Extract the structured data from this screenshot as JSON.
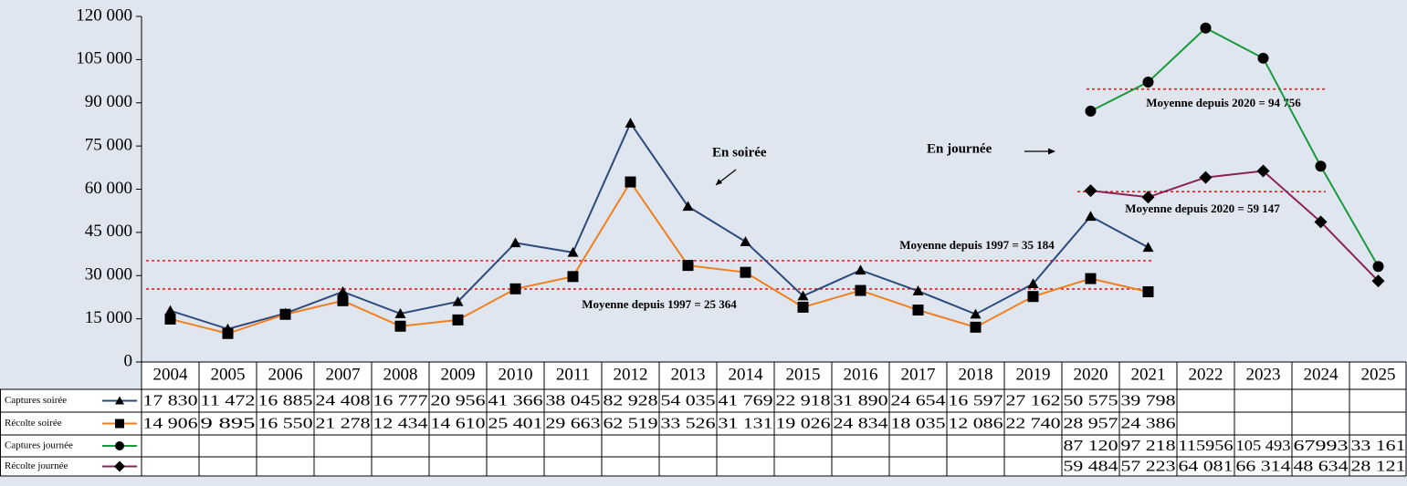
{
  "chart_data": {
    "type": "line",
    "categories": [
      "2004",
      "2005",
      "2006",
      "2007",
      "2008",
      "2009",
      "2010",
      "2011",
      "2012",
      "2013",
      "2014",
      "2015",
      "2016",
      "2017",
      "2018",
      "2019",
      "2020",
      "2021",
      "2022",
      "2023",
      "2024",
      "2025"
    ],
    "ylim": [
      0,
      120000
    ],
    "yticks": [
      0,
      {
        "value": 15000,
        "label": "15 000"
      },
      {
        "value": 30000,
        "label": "30 000"
      },
      {
        "value": 45000,
        "label": "45 000"
      },
      {
        "value": 60000,
        "label": "60 000"
      },
      {
        "value": 75000,
        "label": "75 000"
      },
      {
        "value": 90000,
        "label": "90 000"
      },
      {
        "value": 105000,
        "label": "105 000"
      },
      {
        "value": 120000,
        "label": "120 000"
      }
    ],
    "series": [
      {
        "name": "Captures soirée",
        "color": "#2e4a7a",
        "marker": "triangle",
        "values": [
          17830,
          11472,
          16885,
          24408,
          16777,
          20956,
          41366,
          38045,
          82928,
          54035,
          41769,
          22918,
          31890,
          24654,
          16597,
          27162,
          50575,
          39798,
          null,
          null,
          null,
          null
        ],
        "value_labels": [
          "17 830",
          "11 472",
          "16 885",
          "24 408",
          "16 777",
          "20 956",
          "41 366",
          "38 045",
          "82 928",
          "54 035",
          "41 769",
          "22 918",
          "31 890",
          "24 654",
          "16 597",
          "27 162",
          "50 575",
          "39 798",
          null,
          null,
          null,
          null
        ]
      },
      {
        "name": "Récolte soirée",
        "color": "#f07f1e",
        "marker": "square",
        "values": [
          14906,
          9895,
          16550,
          21278,
          12434,
          14610,
          25401,
          29663,
          62519,
          33526,
          31131,
          19026,
          24834,
          18035,
          12086,
          22740,
          28957,
          24386,
          null,
          null,
          null,
          null
        ],
        "value_labels": [
          "14 906",
          "9 895",
          "16 550",
          "21 278",
          "12 434",
          "14 610",
          "25 401",
          "29 663",
          "62 519",
          "33 526",
          "31 131",
          "19 026",
          "24 834",
          "18 035",
          "12 086",
          "22 740",
          "28 957",
          "24 386",
          null,
          null,
          null,
          null
        ]
      },
      {
        "name": "Captures journée",
        "color": "#1a9a3c",
        "marker": "circle",
        "values": [
          null,
          null,
          null,
          null,
          null,
          null,
          null,
          null,
          null,
          null,
          null,
          null,
          null,
          null,
          null,
          null,
          87120,
          97218,
          115956,
          105493,
          67993,
          33161
        ],
        "value_labels": [
          null,
          null,
          null,
          null,
          null,
          null,
          null,
          null,
          null,
          null,
          null,
          null,
          null,
          null,
          null,
          null,
          "87 120",
          "97 218",
          "115956",
          "105 493",
          "67993",
          "33 161"
        ]
      },
      {
        "name": "Récolte journée",
        "color": "#8b2257",
        "marker": "diamond",
        "values": [
          null,
          null,
          null,
          null,
          null,
          null,
          null,
          null,
          null,
          null,
          null,
          null,
          null,
          null,
          null,
          null,
          59484,
          57223,
          64081,
          66314,
          48634,
          28121
        ],
        "value_labels": [
          null,
          null,
          null,
          null,
          null,
          null,
          null,
          null,
          null,
          null,
          null,
          null,
          null,
          null,
          null,
          null,
          "59 484",
          "57 223",
          "64 081",
          "66 314",
          "48 634",
          "28 121"
        ]
      }
    ],
    "reference_lines": [
      {
        "value": 35184,
        "label": "Moyenne depuis 1997 = 35 184",
        "color": "#e02020"
      },
      {
        "value": 25364,
        "label": "Moyenne depuis 1997 = 25 364",
        "color": "#e02020"
      },
      {
        "value": 94756,
        "label": "Moyenne depuis 2020 = 94 756",
        "color": "#e02020"
      },
      {
        "value": 59147,
        "label": "Moyenne depuis 2020 = 59 147",
        "color": "#e02020"
      }
    ],
    "annotations": [
      "En soirée",
      "En journée"
    ]
  }
}
